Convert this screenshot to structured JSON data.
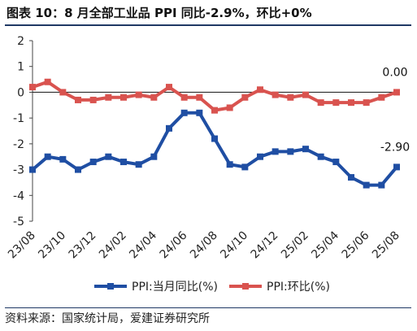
{
  "header": {
    "title": "图表 10：8 月全部工业品 PPI 同比-2.9%，环比+0%"
  },
  "footer": {
    "source": "资料来源：国家统计局，爱建证券研究所"
  },
  "chart_data": {
    "type": "line",
    "title": "图表 10：8 月全部工业品 PPI 同比-2.9%，环比+0%",
    "ylim": [
      -5,
      2
    ],
    "yticks": [
      "2",
      "1",
      "0",
      "-1",
      "-2",
      "-3",
      "-4",
      "-5"
    ],
    "x": [
      "23/08",
      "23/09",
      "23/10",
      "23/11",
      "23/12",
      "24/01",
      "24/02",
      "24/03",
      "24/04",
      "24/05",
      "24/06",
      "24/07",
      "24/08",
      "24/09",
      "24/10",
      "24/11",
      "24/12",
      "25/01",
      "25/02",
      "25/03",
      "25/04",
      "25/05",
      "25/06",
      "25/07",
      "25/08"
    ],
    "xtick_labels": [
      "23/08",
      "23/10",
      "23/12",
      "24/02",
      "24/04",
      "24/06",
      "24/08",
      "24/10",
      "24/12",
      "25/02",
      "25/04",
      "25/06",
      "25/08"
    ],
    "grid": false,
    "legend": "bottom",
    "series": [
      {
        "name": "PPI:当月同比(%)",
        "color": "#1f4ea3",
        "values": [
          -3.0,
          -2.5,
          -2.6,
          -3.0,
          -2.7,
          -2.5,
          -2.7,
          -2.8,
          -2.5,
          -1.4,
          -0.8,
          -0.8,
          -1.8,
          -2.8,
          -2.9,
          -2.5,
          -2.3,
          -2.3,
          -2.2,
          -2.5,
          -2.7,
          -3.3,
          -3.6,
          -3.6,
          -2.9
        ]
      },
      {
        "name": "PPI:环比(%)",
        "color": "#d9534f",
        "values": [
          0.2,
          0.4,
          0.0,
          -0.3,
          -0.3,
          -0.2,
          -0.2,
          -0.1,
          -0.2,
          0.2,
          -0.2,
          -0.2,
          -0.7,
          -0.6,
          -0.2,
          0.1,
          -0.1,
          -0.2,
          -0.1,
          -0.4,
          -0.4,
          -0.4,
          -0.4,
          -0.2,
          0.0
        ]
      }
    ],
    "annotations": [
      {
        "text": "0.00",
        "series": 1,
        "index": 24
      },
      {
        "text": "-2.90",
        "series": 0,
        "index": 24
      }
    ]
  }
}
